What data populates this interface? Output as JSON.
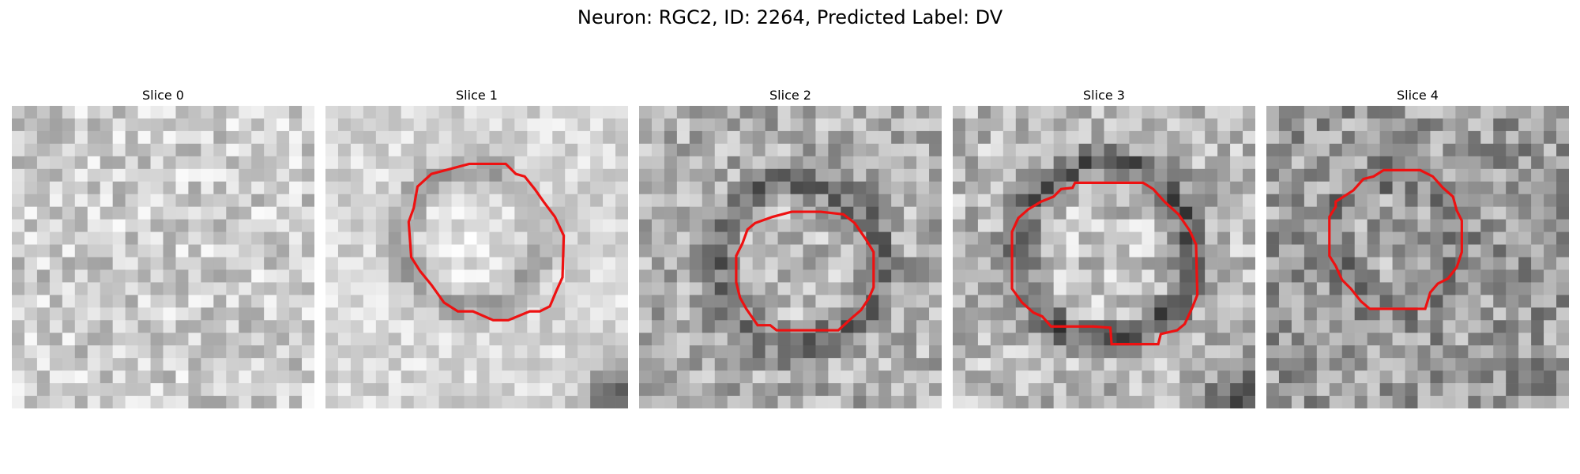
{
  "figure": {
    "title": "Neuron: RGC2, ID: 2264, Predicted Label: DV"
  },
  "panels": [
    {
      "title": "Slice 0",
      "has_contour": false
    },
    {
      "title": "Slice 1",
      "has_contour": true
    },
    {
      "title": "Slice 2",
      "has_contour": true
    },
    {
      "title": "Slice 3",
      "has_contour": true
    },
    {
      "title": "Slice 4",
      "has_contour": true
    }
  ],
  "colors": {
    "contour": "#ee1111",
    "background": "#ffffff"
  }
}
